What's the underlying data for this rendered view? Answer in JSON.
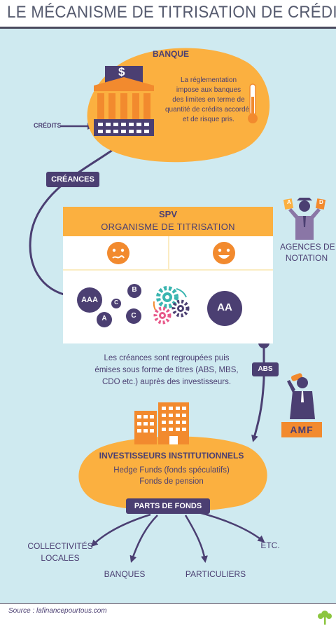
{
  "title": "LE MÉCANISME DE TITRISATION DE CRÉDITS",
  "bank": {
    "heading": "BANQUE",
    "dollar_sign": "$",
    "credits_label": "CRÉDITS",
    "regulation_lines": [
      "La réglementation",
      "impose aux banques",
      "des limites en terme de",
      "quantité de crédits accordés",
      "et de risque pris."
    ]
  },
  "creances_label": "CRÉANCES",
  "spv": {
    "heading": "SPV",
    "subheading": "ORGANISME DE TITRISATION",
    "left_pool": [
      "AAA",
      "B",
      "C",
      "A",
      "C"
    ],
    "right_pool": "AA"
  },
  "agencies": {
    "lines": [
      "AGENCES DE",
      "NOTATION"
    ],
    "card_left": "A",
    "card_right": "D"
  },
  "description_lines": [
    "Les créances sont regroupées puis",
    "émises sous forme de titres (ABS, MBS,",
    "CDO etc.) auprès des investisseurs."
  ],
  "abs_label": "ABS",
  "amf_logo": "AMF",
  "investors": {
    "heading": "INVESTISSEURS INSTITUTIONNELS",
    "lines": [
      "Hedge Funds (fonds spéculatifs)",
      "Fonds de pension"
    ]
  },
  "parts_label": "PARTS DE FONDS",
  "destinations": {
    "collectivites": [
      "COLLECTIVITÉS",
      "LOCALES"
    ],
    "banques": "BANQUES",
    "particuliers": "PARTICULIERS",
    "etc": "ETC."
  },
  "source": "Source : lafinancepourtous.com",
  "colors": {
    "purple": "#4b3f72",
    "orange": "#f28a2e",
    "yellow": "#fbb040",
    "cream": "#fbecc2",
    "background": "#cfeaf0",
    "agency_purple": "#8a76a6"
  }
}
